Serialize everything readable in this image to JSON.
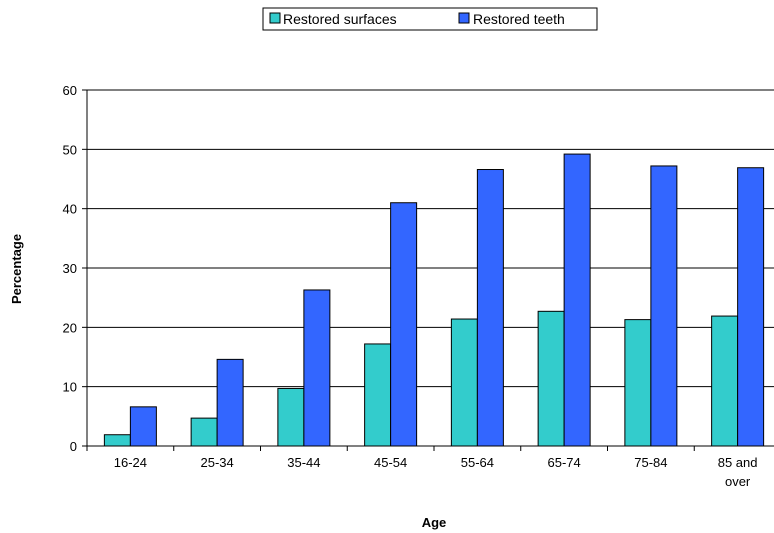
{
  "chart_data": {
    "type": "bar",
    "title": "",
    "xlabel": "Age",
    "ylabel": "Percentage",
    "ylim": [
      0,
      60
    ],
    "yticks": [
      "0",
      "10",
      "20",
      "30",
      "40",
      "50",
      "60"
    ],
    "categories": [
      "16-24",
      "25-34",
      "35-44",
      "45-54",
      "55-64",
      "65-74",
      "75-84",
      "85 and over"
    ],
    "series": [
      {
        "name": "Restored surfaces",
        "color": "#33CCCC",
        "values": [
          1.9,
          4.7,
          9.7,
          17.2,
          21.4,
          22.7,
          21.3,
          21.9
        ]
      },
      {
        "name": "Restored teeth",
        "color": "#3366FF",
        "values": [
          6.6,
          14.6,
          26.3,
          41.0,
          46.6,
          49.2,
          47.2,
          46.9
        ]
      }
    ],
    "grid": true,
    "legend": "top-center"
  }
}
